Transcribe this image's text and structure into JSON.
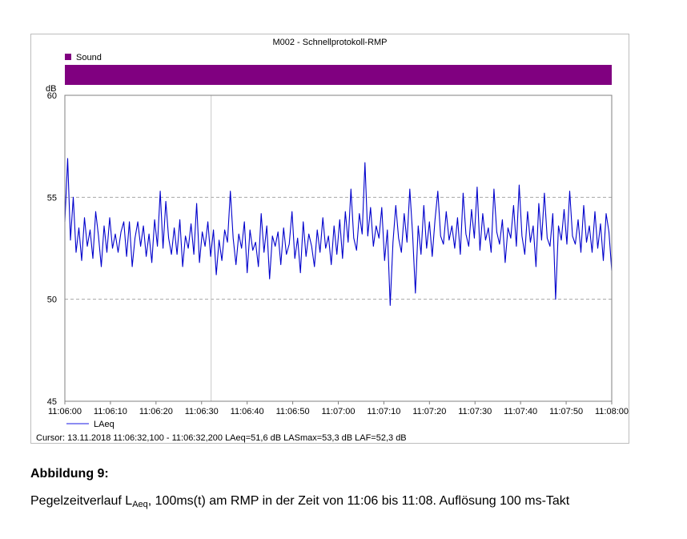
{
  "chart_data": {
    "type": "line",
    "title": "M002 - Schnellprotokoll-RMP",
    "ylabel": "dB",
    "ylim": [
      45,
      60
    ],
    "yticks": [
      "60",
      "55",
      "50",
      "45"
    ],
    "xticks": [
      "11:06:00",
      "11:06:10",
      "11:06:20",
      "11:06:30",
      "11:06:40",
      "11:06:50",
      "11:07:00",
      "11:07:10",
      "11:07:20",
      "11:07:30",
      "11:07:40",
      "11:07:50",
      "11:08:00"
    ],
    "grid": true,
    "band": {
      "label": "Sound",
      "color": "#800080"
    },
    "cursor_x": "11:06:32,100",
    "series": [
      {
        "name": "LAeq",
        "color": "#0000cc",
        "x_start": "11:06:00",
        "x_end": "11:08:00",
        "values": [
          53.8,
          56.9,
          52.9,
          55.0,
          52.3,
          53.5,
          51.9,
          54.0,
          52.6,
          53.4,
          52.0,
          54.3,
          53.1,
          51.6,
          53.6,
          52.3,
          54.0,
          52.5,
          53.2,
          52.3,
          53.3,
          53.8,
          52.1,
          53.8,
          51.6,
          53.0,
          53.8,
          52.6,
          53.6,
          52.1,
          53.2,
          51.8,
          53.9,
          52.6,
          55.3,
          52.5,
          54.8,
          53.0,
          52.2,
          53.5,
          52.2,
          53.9,
          51.6,
          53.1,
          52.5,
          53.7,
          52.2,
          54.7,
          51.8,
          53.3,
          52.6,
          53.8,
          52.1,
          53.4,
          51.2,
          52.9,
          51.9,
          53.4,
          52.8,
          55.3,
          53.0,
          51.7,
          53.2,
          52.5,
          53.8,
          51.3,
          53.4,
          52.4,
          52.8,
          51.6,
          54.2,
          52.3,
          53.6,
          51.0,
          53.1,
          52.6,
          53.3,
          51.7,
          53.5,
          52.2,
          52.7,
          54.3,
          52.0,
          53.0,
          51.3,
          53.8,
          52.1,
          53.2,
          52.6,
          51.6,
          53.4,
          52.3,
          54.0,
          52.5,
          53.1,
          51.7,
          53.6,
          52.2,
          53.9,
          52.0,
          54.3,
          52.8,
          55.4,
          53.0,
          52.4,
          54.2,
          53.2,
          56.7,
          53.1,
          54.5,
          52.6,
          53.6,
          53.0,
          54.5,
          51.9,
          53.4,
          49.7,
          52.8,
          54.6,
          53.0,
          52.3,
          54.2,
          52.8,
          55.4,
          53.2,
          50.3,
          53.6,
          52.2,
          54.6,
          52.5,
          53.8,
          52.1,
          53.9,
          55.3,
          53.1,
          52.7,
          54.3,
          52.9,
          53.6,
          52.5,
          54.0,
          52.2,
          55.2,
          53.2,
          52.6,
          54.4,
          53.0,
          55.5,
          52.4,
          54.2,
          52.9,
          53.5,
          52.3,
          55.4,
          53.3,
          52.7,
          53.9,
          51.8,
          53.5,
          53.0,
          54.6,
          52.6,
          55.6,
          53.1,
          52.2,
          54.3,
          52.8,
          53.6,
          51.6,
          54.7,
          52.9,
          55.2,
          53.0,
          52.6,
          54.2,
          50.0,
          53.6,
          52.9,
          54.4,
          52.7,
          55.3,
          53.1,
          52.7,
          53.9,
          52.3,
          54.6,
          52.8,
          53.6,
          52.3,
          54.3,
          52.5,
          53.7,
          51.9,
          54.2,
          53.3,
          51.4
        ]
      }
    ]
  },
  "status": {
    "cursor_text": "Cursor: 13.11.2018 11:06:32,100 - 11:06:32,200  LAeq=51,6 dB  LASmax=53,3 dB  LAF=52,3 dB"
  },
  "caption": {
    "heading": "Abbildung 9:",
    "text_prefix": "Pegelzeitverlauf L",
    "text_sub": "Aeq",
    "text_suffix": ", 100ms(t) am RMP in der Zeit von 11:06 bis 11:08. Auflösung 100 ms-Takt"
  }
}
